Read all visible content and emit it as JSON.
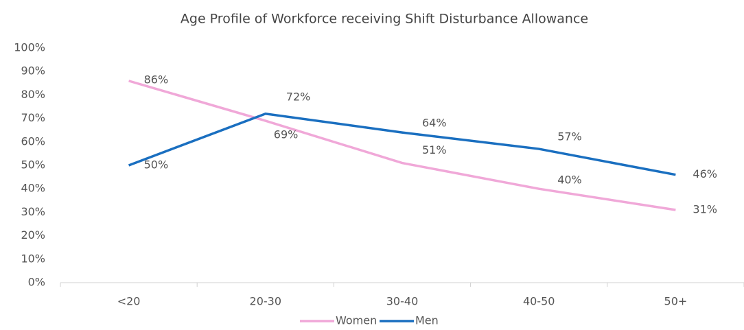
{
  "chart_data": {
    "type": "line",
    "title": "Age Profile of Workforce receiving Shift Disturbance Allowance",
    "categories": [
      "<20",
      "20-30",
      "30-40",
      "40-50",
      "50+"
    ],
    "series": [
      {
        "name": "Women",
        "color": "#f0a8d8",
        "values": [
          86,
          69,
          51,
          40,
          31
        ],
        "value_labels": [
          "86%",
          "69%",
          "51%",
          "40%",
          "31%"
        ]
      },
      {
        "name": "Men",
        "color": "#1a6fc0",
        "values": [
          50,
          72,
          64,
          57,
          46
        ],
        "value_labels": [
          "50%",
          "72%",
          "64%",
          "57%",
          "46%"
        ]
      }
    ],
    "ylim": [
      0,
      100
    ],
    "yticks": [
      {
        "value": 0,
        "label": "0%"
      },
      {
        "value": 10,
        "label": "10%"
      },
      {
        "value": 20,
        "label": "20%"
      },
      {
        "value": 30,
        "label": "30%"
      },
      {
        "value": 40,
        "label": "40%"
      },
      {
        "value": 50,
        "label": "50%"
      },
      {
        "value": 60,
        "label": "60%"
      },
      {
        "value": 70,
        "label": "70%"
      },
      {
        "value": 80,
        "label": "80%"
      },
      {
        "value": 90,
        "label": "90%"
      },
      {
        "value": 100,
        "label": "100%"
      }
    ],
    "legend": "bottom"
  }
}
